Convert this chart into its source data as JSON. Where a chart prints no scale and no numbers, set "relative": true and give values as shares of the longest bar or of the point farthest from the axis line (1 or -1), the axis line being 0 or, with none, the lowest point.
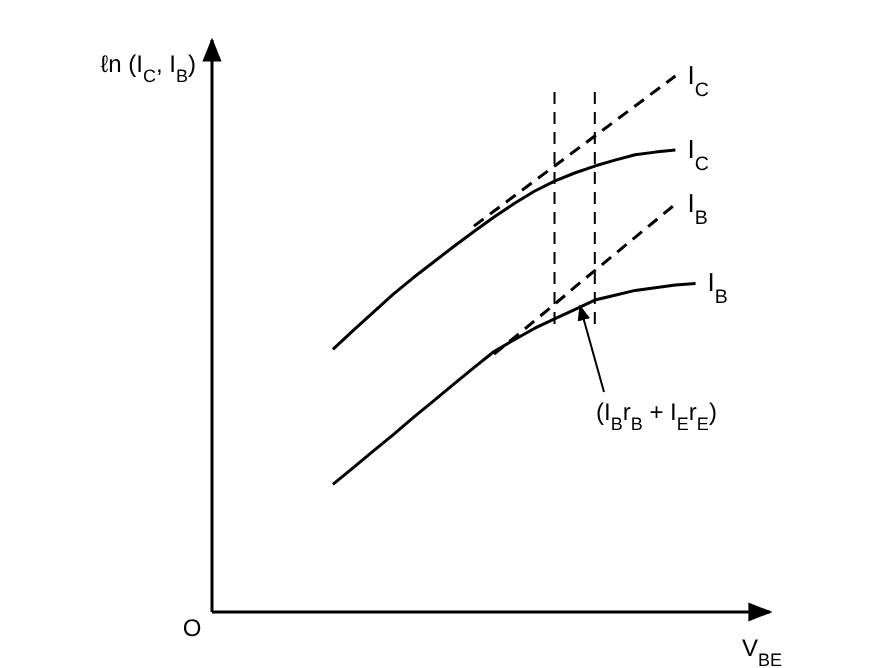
{
  "chart_data": {
    "type": "line",
    "relative": true,
    "xlabel": "V$_{BE}$",
    "ylabel": "ℓn (I$_{C}$, I$_{B}$)",
    "legend": false,
    "marker": "none",
    "categories": [
      null,
      null,
      null,
      null,
      null,
      null,
      null,
      null,
      null,
      null,
      null,
      null,
      null,
      null,
      null,
      null,
      null,
      null,
      null,
      null,
      null,
      null,
      null,
      null,
      null,
      null,
      null,
      null
    ],
    "series": [
      {
        "name": "I$_{C}$",
        "color": "#000000",
        "line_style": "dashed",
        "values": [
          null,
          null,
          null,
          null,
          null,
          null,
          null,
          null,
          null,
          null,
          null,
          null,
          null,
          0.72,
          0.748,
          0.776,
          0.804,
          0.832,
          0.86,
          0.888,
          0.916,
          0.944,
          0.972,
          1.0,
          null,
          null,
          null,
          null
        ]
      },
      {
        "name": "I$_{C}$",
        "color": "#000000",
        "line_style": "solid",
        "values": [
          null,
          null,
          null,
          null,
          null,
          null,
          0.49,
          0.525,
          0.559,
          0.593,
          0.624,
          0.653,
          0.682,
          0.71,
          0.737,
          0.762,
          0.785,
          0.804,
          0.819,
          0.832,
          0.843,
          0.853,
          0.858,
          0.862,
          null,
          null,
          null,
          null
        ]
      },
      {
        "name": "I$_{B}$",
        "color": "#000000",
        "line_style": "dashed",
        "values": [
          null,
          null,
          null,
          null,
          null,
          null,
          null,
          null,
          null,
          null,
          null,
          null,
          null,
          null,
          0.481,
          0.512,
          0.543,
          0.574,
          0.606,
          0.637,
          0.668,
          0.699,
          0.73,
          0.761,
          null,
          null,
          null,
          null
        ]
      },
      {
        "name": "I$_{B}$",
        "color": "#000000",
        "line_style": "solid",
        "values": [
          null,
          null,
          null,
          null,
          null,
          null,
          0.238,
          0.269,
          0.3,
          0.331,
          0.363,
          0.394,
          0.425,
          0.456,
          0.486,
          0.508,
          0.529,
          0.547,
          0.564,
          0.582,
          0.591,
          0.6,
          0.605,
          0.61,
          0.613,
          null,
          null,
          null
        ]
      }
    ],
    "annotations": [
      "O",
      "(I$_{B}$r$_{B}$ + I$_{E}$r$_{E}$)"
    ]
  }
}
